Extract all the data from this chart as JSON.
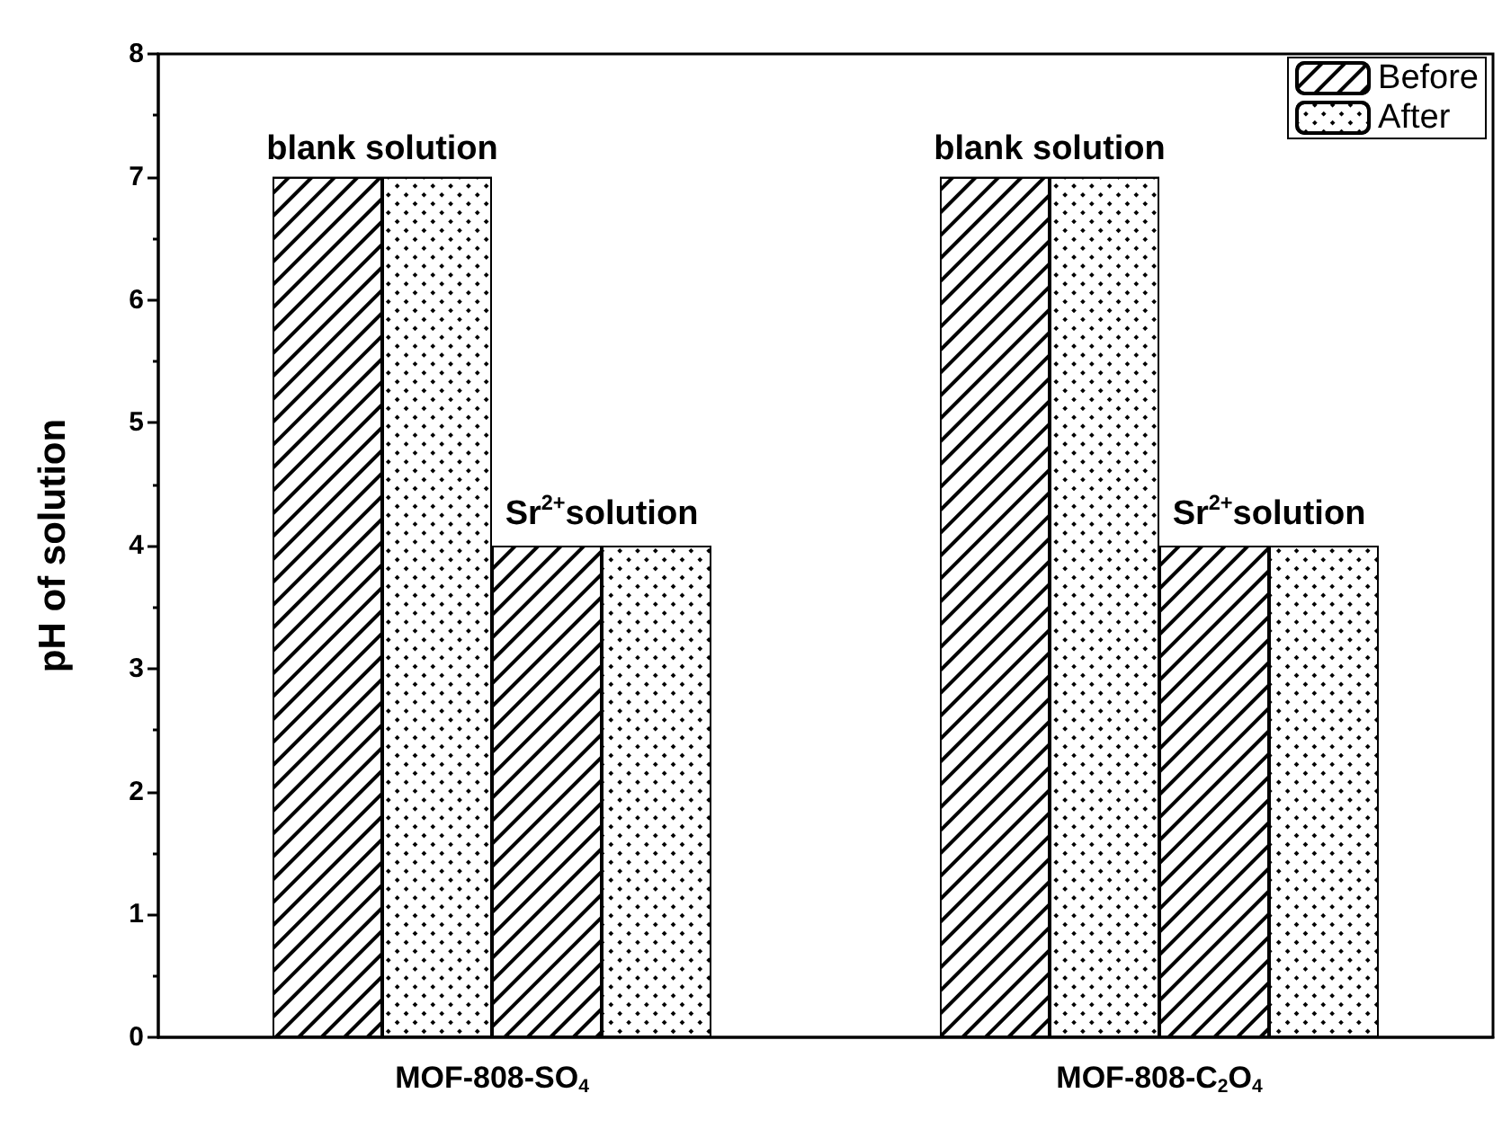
{
  "chart_data": {
    "type": "bar",
    "ylabel": "pH of solution",
    "categories": [
      "MOF-808-SO$_{4}$",
      "MOF-808-C$_{2}$O$_{4}$"
    ],
    "series": [
      {
        "name": "Before",
        "color": "#ffffff",
        "values": [
          7,
          7
        ]
      },
      {
        "name": "After",
        "color": "#ffffff",
        "values": [
          7,
          7
        ]
      },
      {
        "color": "#ffffff",
        "values": [
          4,
          4
        ]
      },
      {
        "color": "#ffffff",
        "values": [
          4,
          4
        ]
      }
    ],
    "ylim": [
      0,
      8
    ],
    "yticks": [
      0,
      1,
      2,
      3,
      4,
      5,
      6,
      7,
      8
    ],
    "grid": false,
    "legend": "top right",
    "annotations": [
      {
        "text": "blank solution",
        "x": "MOF-808-SO$_{4}$",
        "y": 7
      },
      {
        "text": "Sr$^{2+}$solution",
        "x": "MOF-808-SO$_{4}$",
        "y": 4
      },
      {
        "text": "blank solution",
        "x": "MOF-808-C$_{2}$O$_{4}$",
        "y": 7
      },
      {
        "text": "Sr$^{2+}$solution",
        "x": "MOF-808-C$_{2}$O$_{4}$",
        "y": 4
      }
    ]
  }
}
